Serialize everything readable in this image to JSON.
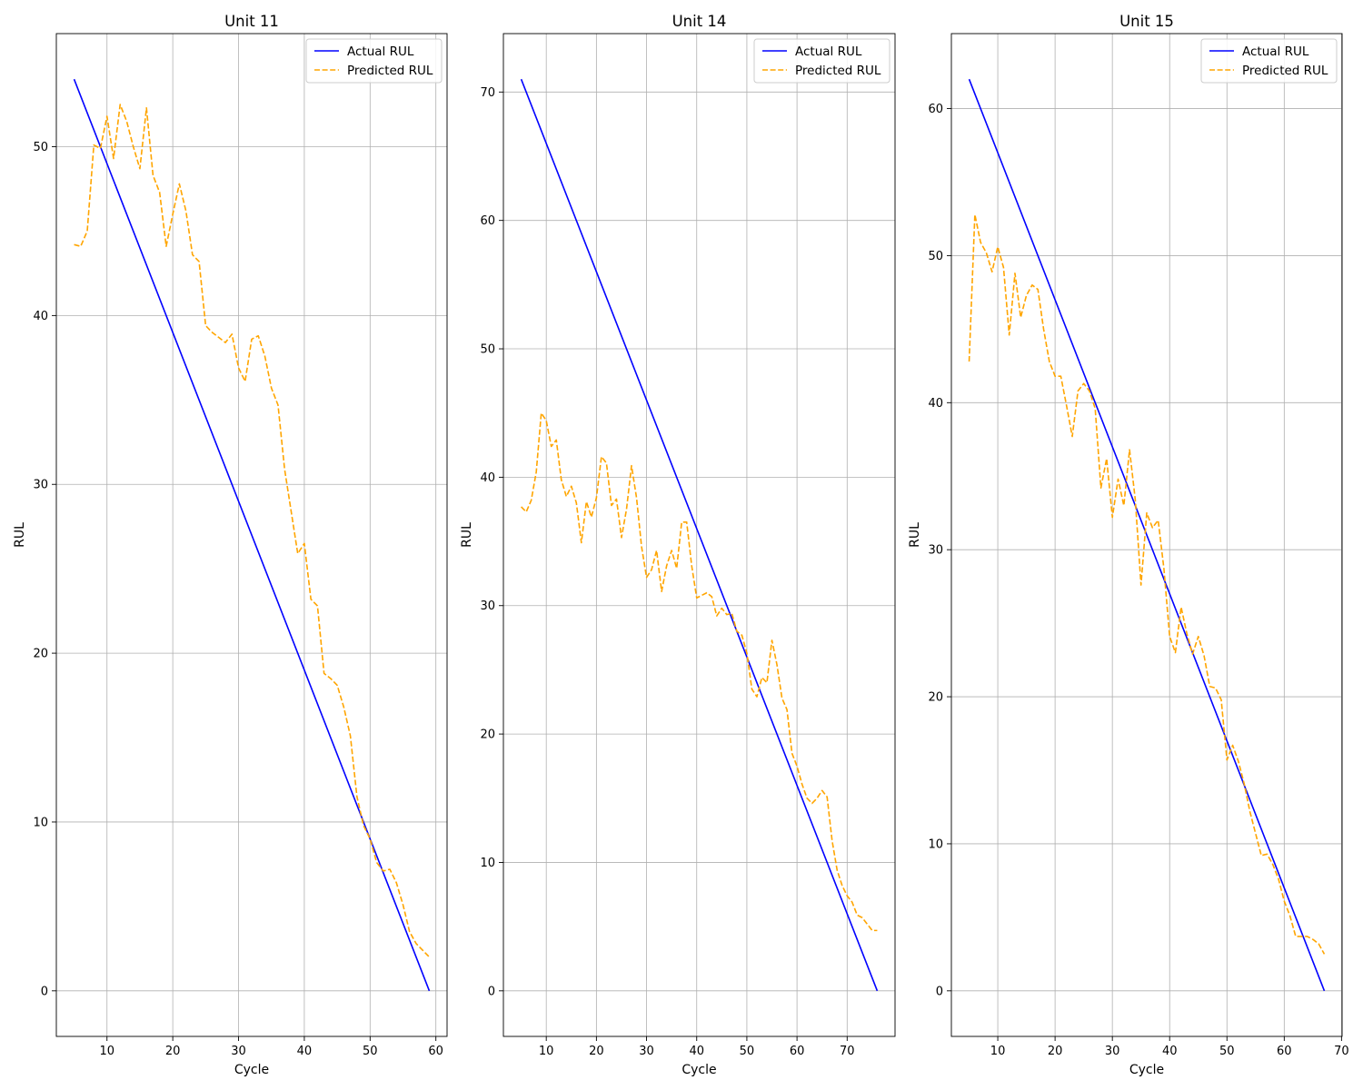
{
  "chart_data": [
    {
      "type": "line",
      "title": "Unit 11",
      "xlabel": "Cycle",
      "ylabel": "RUL",
      "xlim": [
        2.3,
        61.7
      ],
      "ylim": [
        -2.7,
        56.7
      ],
      "xticks": [
        10,
        20,
        30,
        40,
        50,
        60
      ],
      "yticks": [
        0,
        10,
        20,
        30,
        40,
        50
      ],
      "grid": true,
      "legend_position": "upper-right",
      "series": [
        {
          "name": "Actual RUL",
          "color": "#0000ff",
          "style": "solid",
          "x": [
            5,
            59
          ],
          "y": [
            54,
            0
          ]
        },
        {
          "name": "Predicted RUL",
          "color": "#ffa500",
          "style": "dashed",
          "x": [
            5,
            6,
            7,
            8,
            9,
            10,
            11,
            12,
            13,
            14,
            15,
            16,
            17,
            18,
            19,
            20,
            21,
            22,
            23,
            24,
            25,
            26,
            27,
            28,
            29,
            30,
            31,
            32,
            33,
            34,
            35,
            36,
            37,
            38,
            39,
            40,
            41,
            42,
            43,
            44,
            45,
            46,
            47,
            48,
            49,
            50,
            51,
            52,
            53,
            54,
            55,
            56,
            57,
            58,
            59
          ],
          "y": [
            44.2,
            44.1,
            45.0,
            50.1,
            49.9,
            51.8,
            49.3,
            52.5,
            51.5,
            50.0,
            48.7,
            52.3,
            48.3,
            47.3,
            44.1,
            46.0,
            47.8,
            46.2,
            43.6,
            43.2,
            39.4,
            39.0,
            38.7,
            38.4,
            38.9,
            36.9,
            36.1,
            38.6,
            38.8,
            37.6,
            35.7,
            34.7,
            30.9,
            28.4,
            25.9,
            26.5,
            23.2,
            22.8,
            18.8,
            18.5,
            18.1,
            16.8,
            15.1,
            11.5,
            9.8,
            9.0,
            7.6,
            7.1,
            7.2,
            6.4,
            5.1,
            3.5,
            2.8,
            2.4,
            2.0
          ]
        }
      ]
    },
    {
      "type": "line",
      "title": "Unit 14",
      "xlabel": "Cycle",
      "ylabel": "RUL",
      "xlim": [
        1.45,
        79.55
      ],
      "ylim": [
        -3.55,
        74.55
      ],
      "xticks": [
        10,
        20,
        30,
        40,
        50,
        60,
        70
      ],
      "yticks": [
        0,
        10,
        20,
        30,
        40,
        50,
        60,
        70
      ],
      "grid": true,
      "legend_position": "upper-right",
      "series": [
        {
          "name": "Actual RUL",
          "color": "#0000ff",
          "style": "solid",
          "x": [
            5,
            76
          ],
          "y": [
            71,
            0
          ]
        },
        {
          "name": "Predicted RUL",
          "color": "#ffa500",
          "style": "dashed",
          "x": [
            5,
            6,
            7,
            8,
            9,
            10,
            11,
            12,
            13,
            14,
            15,
            16,
            17,
            18,
            19,
            20,
            21,
            22,
            23,
            24,
            25,
            26,
            27,
            28,
            29,
            30,
            31,
            32,
            33,
            34,
            35,
            36,
            37,
            38,
            39,
            40,
            41,
            42,
            43,
            44,
            45,
            46,
            47,
            48,
            49,
            50,
            51,
            52,
            53,
            54,
            55,
            56,
            57,
            58,
            59,
            60,
            61,
            62,
            63,
            64,
            65,
            66,
            67,
            68,
            69,
            70,
            71,
            72,
            73,
            74,
            75,
            76
          ],
          "y": [
            37.7,
            37.3,
            38.2,
            40.4,
            45.0,
            44.4,
            42.4,
            42.9,
            39.8,
            38.5,
            39.3,
            38.0,
            34.9,
            38.1,
            36.9,
            38.4,
            41.6,
            41.1,
            37.8,
            38.3,
            35.3,
            37.5,
            40.9,
            38.4,
            34.6,
            32.2,
            32.8,
            34.3,
            31.1,
            33.1,
            34.3,
            32.9,
            36.5,
            36.5,
            33.1,
            30.6,
            30.8,
            31.0,
            30.7,
            29.2,
            29.8,
            29.3,
            29.4,
            28.0,
            27.7,
            26.3,
            23.5,
            22.9,
            24.4,
            24.0,
            27.3,
            25.4,
            22.8,
            21.9,
            18.5,
            17.5,
            16.1,
            15.0,
            14.6,
            15.0,
            15.6,
            15.1,
            11.7,
            9.4,
            8.2,
            7.4,
            6.9,
            5.9,
            5.7,
            5.2,
            4.7,
            4.7
          ]
        }
      ]
    },
    {
      "type": "line",
      "title": "Unit 15",
      "xlabel": "Cycle",
      "ylabel": "RUL",
      "xlim": [
        1.9,
        70.1
      ],
      "ylim": [
        -3.1,
        65.1
      ],
      "xticks": [
        10,
        20,
        30,
        40,
        50,
        60,
        70
      ],
      "yticks": [
        0,
        10,
        20,
        30,
        40,
        50,
        60
      ],
      "grid": true,
      "legend_position": "upper-right",
      "series": [
        {
          "name": "Actual RUL",
          "color": "#0000ff",
          "style": "solid",
          "x": [
            5,
            67
          ],
          "y": [
            62,
            0
          ]
        },
        {
          "name": "Predicted RUL",
          "color": "#ffa500",
          "style": "dashed",
          "x": [
            5,
            6,
            7,
            8,
            9,
            10,
            11,
            12,
            13,
            14,
            15,
            16,
            17,
            18,
            19,
            20,
            21,
            22,
            23,
            24,
            25,
            26,
            27,
            28,
            29,
            30,
            31,
            32,
            33,
            34,
            35,
            36,
            37,
            38,
            39,
            40,
            41,
            42,
            43,
            44,
            45,
            46,
            47,
            48,
            49,
            50,
            51,
            52,
            53,
            54,
            55,
            56,
            57,
            58,
            59,
            60,
            61,
            62,
            63,
            64,
            65,
            66,
            67
          ],
          "y": [
            42.8,
            52.8,
            50.9,
            50.2,
            48.9,
            50.6,
            49.2,
            44.6,
            48.8,
            45.8,
            47.3,
            48.0,
            47.7,
            45.0,
            42.8,
            41.8,
            41.8,
            39.8,
            37.7,
            40.8,
            41.3,
            40.8,
            39.6,
            34.2,
            36.2,
            32.2,
            34.8,
            33.0,
            36.8,
            33.4,
            27.6,
            32.5,
            31.5,
            32.0,
            28.7,
            24.1,
            23.0,
            26.1,
            24.3,
            22.9,
            24.1,
            22.8,
            20.7,
            20.6,
            19.8,
            15.7,
            16.7,
            15.6,
            14.1,
            12.2,
            10.7,
            9.2,
            9.3,
            8.6,
            7.6,
            6.1,
            5.1,
            3.7,
            3.7,
            3.7,
            3.5,
            3.2,
            2.5
          ]
        }
      ]
    }
  ]
}
